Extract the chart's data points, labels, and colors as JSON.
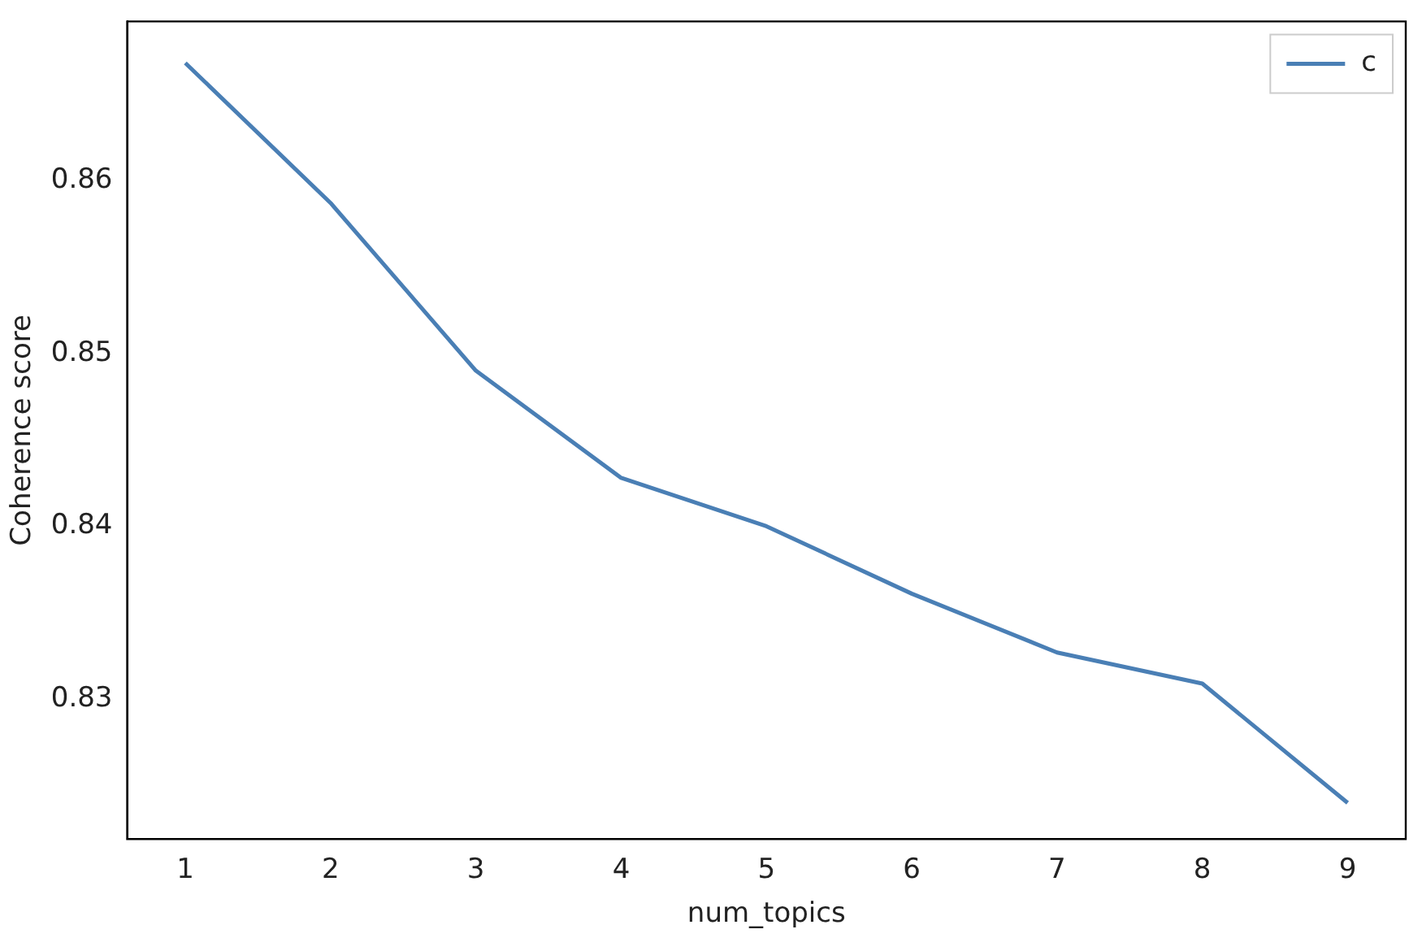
{
  "chart_data": {
    "type": "line",
    "xlabel": "num_topics",
    "ylabel": "Coherence score",
    "x": [
      1,
      2,
      3,
      4,
      5,
      6,
      7,
      8,
      9
    ],
    "series": [
      {
        "name": "c",
        "color": "#4a7fb5",
        "values": [
          0.8668,
          0.8587,
          0.849,
          0.8428,
          0.84,
          0.8361,
          0.8327,
          0.8309,
          0.824
        ]
      }
    ],
    "xlim": [
      0.6,
      9.4
    ],
    "xticks": [
      1,
      2,
      3,
      4,
      5,
      6,
      7,
      8,
      9
    ],
    "ylim": [
      0.8219,
      0.8692
    ],
    "yticks": [
      0.83,
      0.84,
      0.85,
      0.86
    ],
    "grid": false,
    "legend": "top right",
    "marker": "none",
    "line_style": "solid"
  }
}
